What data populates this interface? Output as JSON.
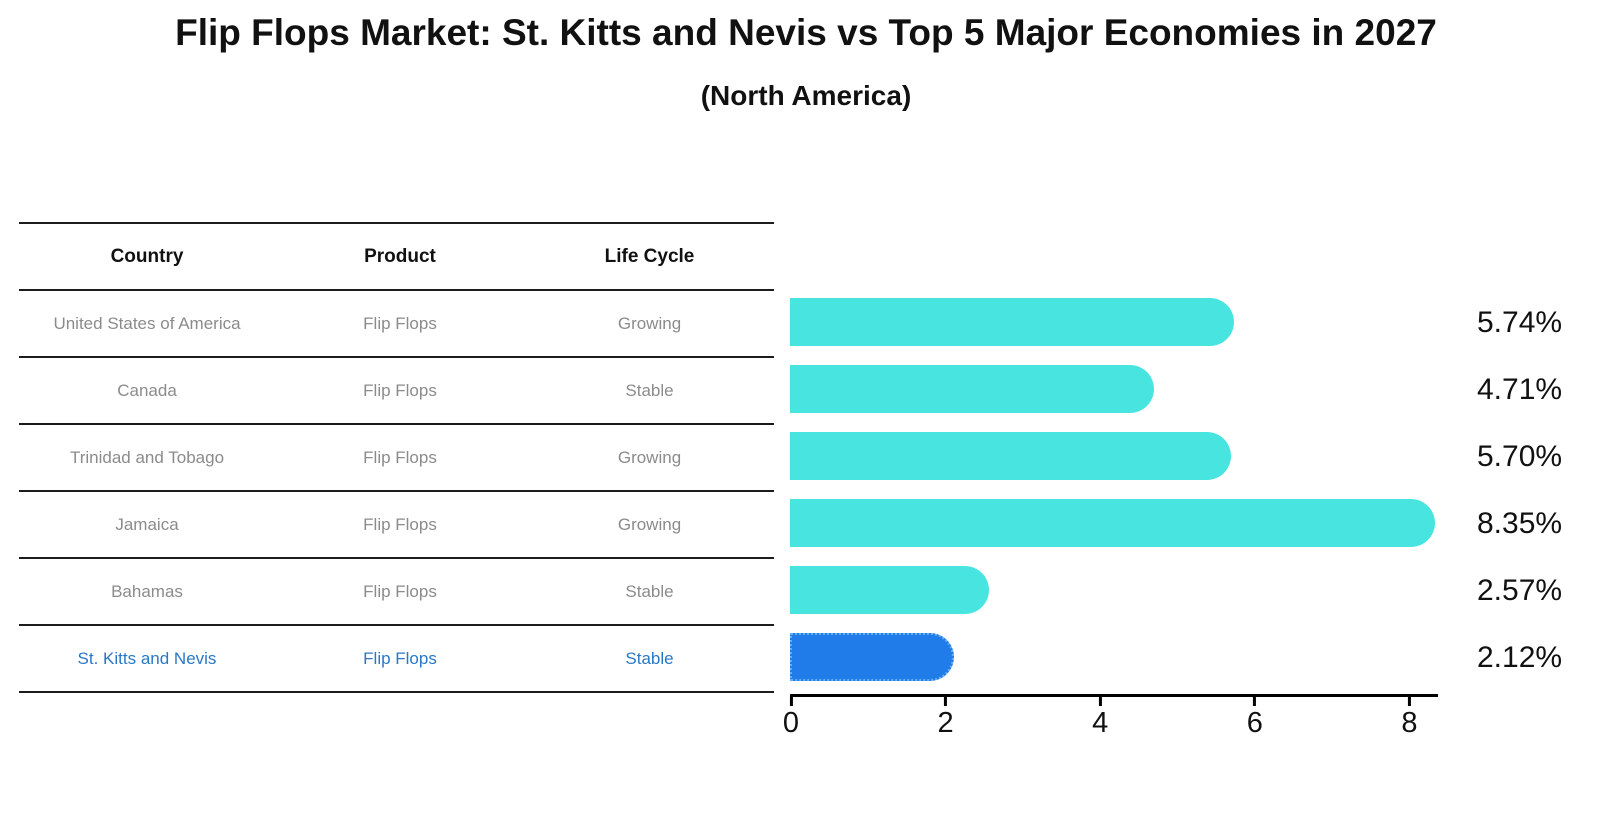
{
  "title": "Flip Flops Market: St. Kitts and Nevis vs Top 5 Major Economies in 2027",
  "subtitle": "(North America)",
  "table": {
    "headers": [
      "Country",
      "Product",
      "Life Cycle"
    ],
    "rows": [
      {
        "country": "United States of America",
        "product": "Flip Flops",
        "life_cycle": "Growing",
        "value_label": "5.74%",
        "highlight": false
      },
      {
        "country": "Canada",
        "product": "Flip Flops",
        "life_cycle": "Stable",
        "value_label": "4.71%",
        "highlight": false
      },
      {
        "country": "Trinidad and Tobago",
        "product": "Flip Flops",
        "life_cycle": "Growing",
        "value_label": "5.70%",
        "highlight": false
      },
      {
        "country": "Jamaica",
        "product": "Flip Flops",
        "life_cycle": "Growing",
        "value_label": "8.35%",
        "highlight": false
      },
      {
        "country": "Bahamas",
        "product": "Flip Flops",
        "life_cycle": "Stable",
        "value_label": "2.57%",
        "highlight": false
      },
      {
        "country": "St. Kitts and Nevis",
        "product": "Flip Flops",
        "life_cycle": "Stable",
        "value_label": "2.12%",
        "highlight": true
      }
    ]
  },
  "chart_data": {
    "type": "bar",
    "orientation": "horizontal",
    "title": "Flip Flops Market: St. Kitts and Nevis vs Top 5 Major Economies in 2027",
    "subtitle": "(North America)",
    "categories": [
      "United States of America",
      "Canada",
      "Trinidad and Tobago",
      "Jamaica",
      "Bahamas",
      "St. Kitts and Nevis"
    ],
    "values": [
      5.74,
      4.71,
      5.7,
      8.35,
      2.57,
      2.12
    ],
    "value_labels": [
      "5.74%",
      "4.71%",
      "5.70%",
      "8.35%",
      "2.57%",
      "2.12%"
    ],
    "xlabel": "",
    "ylabel": "",
    "xticks": [
      0,
      2,
      4,
      6,
      8
    ],
    "xlim": [
      0,
      8.4
    ],
    "grid": false,
    "legend": "none",
    "bar_color": "#48e5e0",
    "highlight_color": "#1f7ce8",
    "highlight_border_color": "#66aef5",
    "highlight_index": 5,
    "highlight_text_color": "#2878c8"
  }
}
